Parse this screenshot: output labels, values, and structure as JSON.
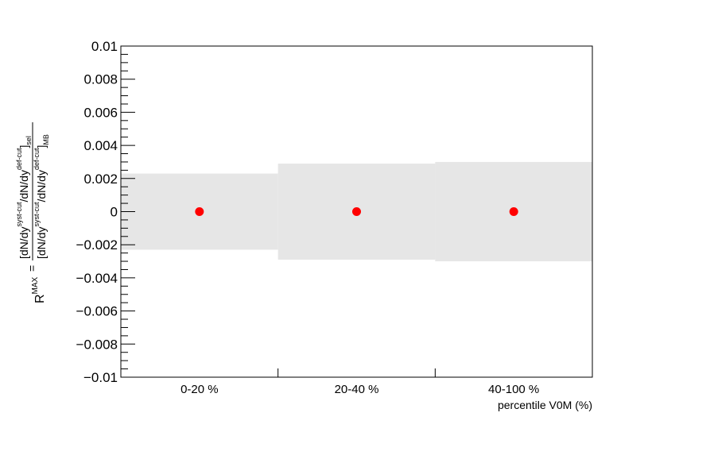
{
  "chart_data": {
    "type": "scatter",
    "xlabel": "percentile V0M (%)",
    "ylabel": {
      "prefix": "R",
      "prefix_sup": "MAX",
      "equals": "=",
      "numerator": {
        "a": "[dN/dy",
        "a_sup": "syst-cut",
        "b": "/dN/dy",
        "b_sup": "def-cut",
        "c": "]",
        "c_sub": "sel"
      },
      "denominator": {
        "a": "[dN/dy",
        "a_sup": "syst-cut",
        "b": "/dN/dy",
        "b_sup": "def-cut",
        "c": "]",
        "c_sub": "MB"
      }
    },
    "ylim": [
      -0.01,
      0.01
    ],
    "yticks": [
      0.01,
      0.008,
      0.006,
      0.004,
      0.002,
      0,
      -0.002,
      -0.004,
      -0.006,
      -0.008,
      -0.01
    ],
    "ytick_labels": [
      "0.01",
      "0.008",
      "0.006",
      "0.004",
      "0.002",
      "0",
      "−0.002",
      "−0.004",
      "−0.006",
      "−0.008",
      "−0.01"
    ],
    "categories": [
      "0-20 %",
      "20-40 %",
      "40-100 %"
    ],
    "values": [
      0,
      0,
      0
    ],
    "band_halfwidth": [
      0.0023,
      0.0029,
      0.003
    ],
    "marker_color": "#ff0000",
    "band_color": "#e6e6e6",
    "grid": false
  }
}
